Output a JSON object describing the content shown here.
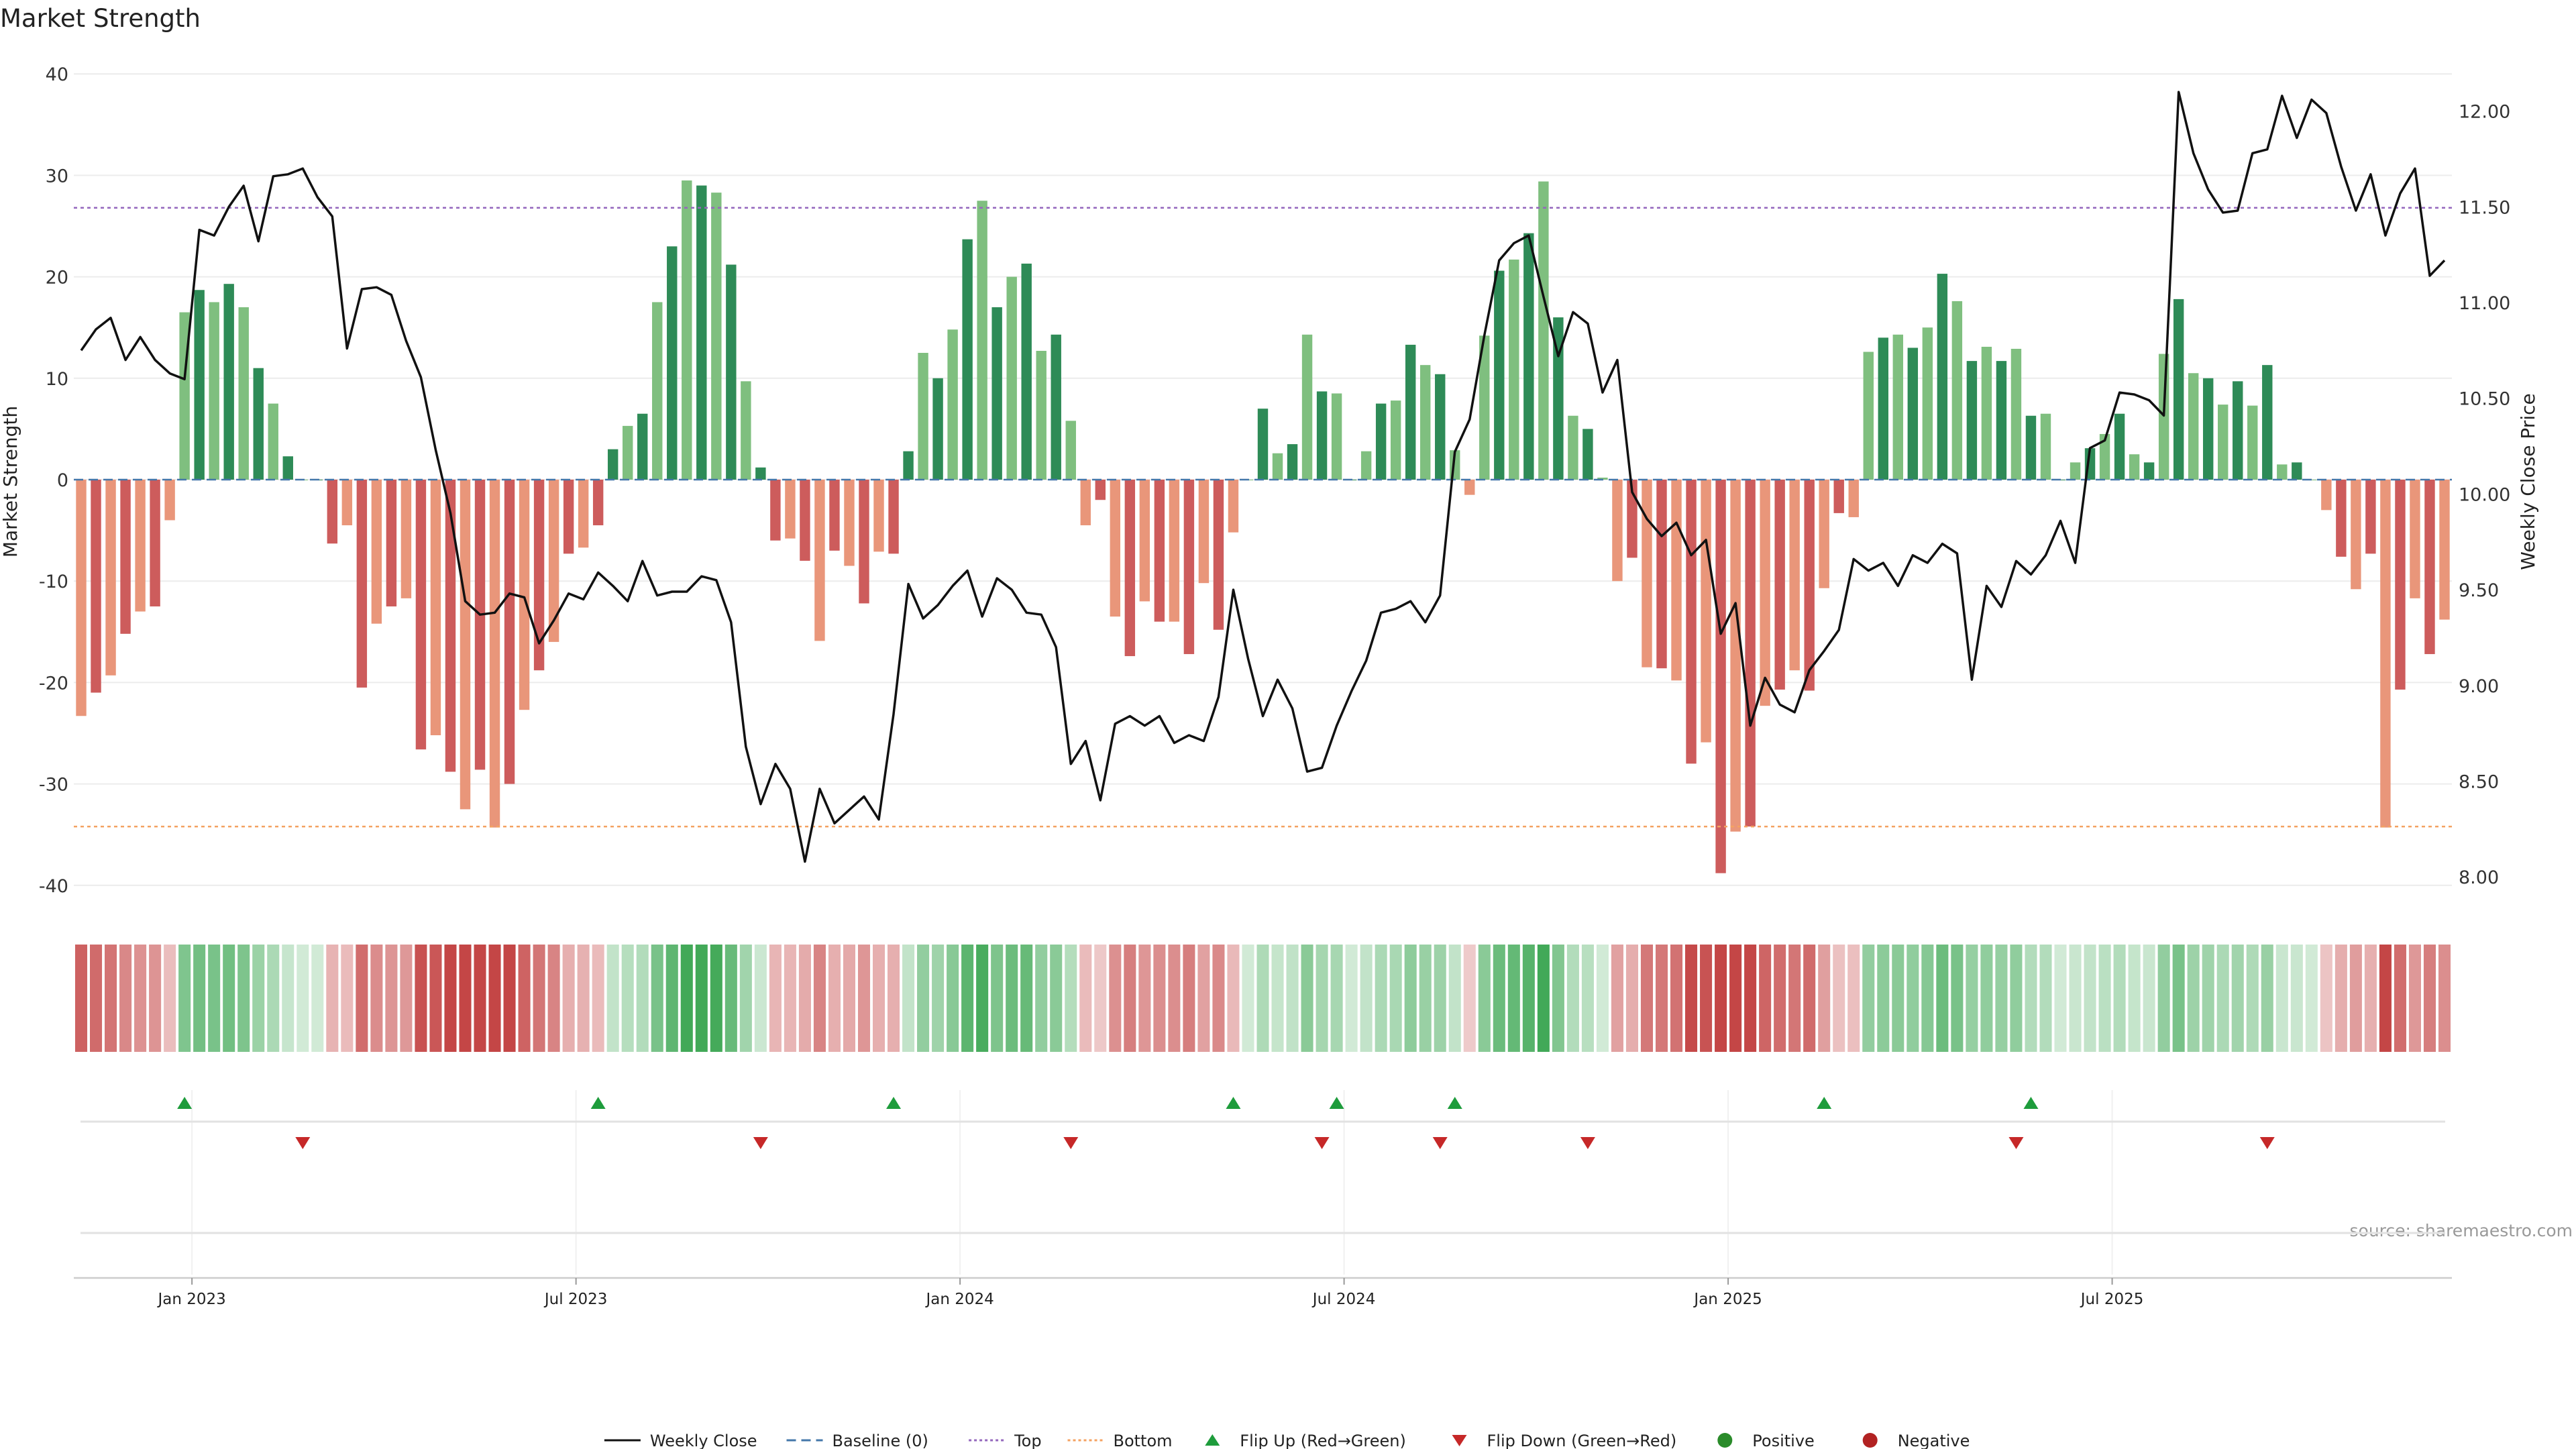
{
  "chart_data": {
    "type": "bar",
    "title": "Market Strength",
    "ylabel": "Market Strength",
    "y2label": "Weekly Close Price",
    "ylim": [
      -42,
      42
    ],
    "y2lim": [
      7.85,
      12.3
    ],
    "y_ticks": [
      -40,
      -30,
      -20,
      -10,
      0,
      10,
      20,
      30,
      40
    ],
    "y2_ticks": [
      8.0,
      8.5,
      9.0,
      9.5,
      10.0,
      10.5,
      11.0,
      11.5,
      12.0
    ],
    "y2_tick_labels": [
      "8.00",
      "8.50",
      "9.00",
      "9.50",
      "10.00",
      "10.50",
      "11.00",
      "11.50",
      "12.00"
    ],
    "x_tick_labels": [
      "Jan 2023",
      "Jul 2023",
      "Jan 2024",
      "Jul 2024",
      "Jan 2025",
      "Jul 2025"
    ],
    "x_tick_weeks": [
      7.5,
      33.5,
      59.5,
      85.5,
      111.5,
      137.5
    ],
    "top_line": 26.8,
    "bottom_line": -34.2,
    "strength": [
      -23.3,
      -21,
      -19.3,
      -15.2,
      -13,
      -12.5,
      -4,
      16.5,
      18.7,
      17.5,
      19.3,
      17,
      11,
      7.5,
      2.3,
      0,
      0,
      -6.3,
      -4.5,
      -20.5,
      -14.2,
      -12.5,
      -11.7,
      -26.6,
      -25.2,
      -28.8,
      -32.5,
      -28.6,
      -34.3,
      -30,
      -22.7,
      -18.8,
      -16,
      -7.3,
      -6.7,
      -4.5,
      3,
      5.3,
      6.5,
      17.5,
      23,
      29.5,
      29,
      28.3,
      21.2,
      9.7,
      1.2,
      -6,
      -5.8,
      -8,
      -15.9,
      -7,
      -8.5,
      -12.2,
      -7.1,
      -7.3,
      2.8,
      12.5,
      10,
      14.8,
      23.7,
      27.5,
      17,
      20,
      21.3,
      12.7,
      14.3,
      5.8,
      -4.5,
      -2,
      -13.5,
      -17.4,
      -12,
      -14,
      -14,
      -17.2,
      -10.2,
      -14.8,
      -5.2,
      0,
      7,
      2.6,
      3.5,
      14.3,
      8.7,
      8.5,
      0,
      2.8,
      7.5,
      7.8,
      13.3,
      11.3,
      10.4,
      2.9,
      -1.5,
      14.2,
      20.6,
      21.7,
      24.3,
      29.4,
      16,
      6.3,
      5,
      0.2,
      -10,
      -7.7,
      -18.5,
      -18.6,
      -19.8,
      -28,
      -25.9,
      -38.8,
      -34.7,
      -34.2,
      -22.3,
      -20.7,
      -18.8,
      -20.8,
      -10.7,
      -3.3,
      -3.7,
      12.6,
      14,
      14.3,
      13,
      15,
      20.3,
      17.6,
      11.7,
      13.1,
      11.7,
      12.9,
      6.3,
      6.5,
      0,
      1.7,
      3.1,
      4.5,
      6.5,
      2.5,
      1.7,
      12.4,
      17.8,
      10.5,
      10,
      7.4,
      9.7,
      7.3,
      11.3,
      1.5,
      1.7,
      0,
      -3,
      -7.6,
      -10.8,
      -7.3,
      -34.3,
      -20.7,
      -11.7,
      -17.2,
      -13.8
    ],
    "weekly_close": [
      10.75,
      10.86,
      10.92,
      10.7,
      10.82,
      10.7,
      10.63,
      10.6,
      11.38,
      11.35,
      11.5,
      11.61,
      11.32,
      11.66,
      11.67,
      11.7,
      11.55,
      11.45,
      10.76,
      11.07,
      11.08,
      11.04,
      10.8,
      10.61,
      10.23,
      9.9,
      9.44,
      9.37,
      9.38,
      9.48,
      9.46,
      9.22,
      9.34,
      9.48,
      9.45,
      9.59,
      9.52,
      9.44,
      9.65,
      9.47,
      9.49,
      9.49,
      9.57,
      9.55,
      9.33,
      8.68,
      8.38,
      8.59,
      8.46,
      8.08,
      8.46,
      8.28,
      8.35,
      8.42,
      8.3,
      8.85,
      9.53,
      9.35,
      9.42,
      9.52,
      9.6,
      9.36,
      9.56,
      9.5,
      9.38,
      9.37,
      9.2,
      8.59,
      8.71,
      8.4,
      8.8,
      8.84,
      8.79,
      8.84,
      8.7,
      8.74,
      8.71,
      8.94,
      9.5,
      9.14,
      8.84,
      9.03,
      8.88,
      8.55,
      8.57,
      8.79,
      8.97,
      9.13,
      9.38,
      9.4,
      9.44,
      9.33,
      9.47,
      10.22,
      10.39,
      10.83,
      11.22,
      11.31,
      11.35,
      11.03,
      10.72,
      10.95,
      10.89,
      10.53,
      10.7,
      10.01,
      9.87,
      9.78,
      9.85,
      9.68,
      9.76,
      9.27,
      9.43,
      8.79,
      9.04,
      8.9,
      8.86,
      9.08,
      9.18,
      9.29,
      9.66,
      9.6,
      9.64,
      9.52,
      9.68,
      9.64,
      9.74,
      9.69,
      9.03,
      9.52,
      9.41,
      9.65,
      9.58,
      9.68,
      9.86,
      9.64,
      10.24,
      10.28,
      10.53,
      10.52,
      10.49,
      10.41,
      12.1,
      11.78,
      11.59,
      11.47,
      11.48,
      11.78,
      11.8,
      12.08,
      11.86,
      12.06,
      11.99,
      11.71,
      11.48,
      11.67,
      11.35,
      11.57,
      11.7,
      11.14,
      11.22
    ],
    "flip_up_weeks": [
      7,
      35,
      55,
      78,
      85,
      93,
      118,
      132
    ],
    "flip_down_weeks": [
      15,
      46,
      67,
      84,
      92,
      102,
      131,
      148
    ],
    "colors": {
      "strong_green": "#2e8b57",
      "light_green": "#7fbf7f",
      "strong_red": "#cd5c5c",
      "light_red": "#e9967a",
      "close_line": "#111111",
      "top_line": "#9467bd",
      "bottom_line": "#f4a261",
      "flip_up": "#1e9c3c",
      "flip_down": "#c62828",
      "positive": "#2a8b2a",
      "negative": "#b22222"
    },
    "legend": [
      {
        "label": "Weekly Close",
        "kind": "line",
        "color": "#111111",
        "dash": ""
      },
      {
        "label": "Baseline (0)",
        "kind": "line",
        "color": "#4477aa",
        "dash": "14,8"
      },
      {
        "label": "Top",
        "kind": "line",
        "color": "#9467bd",
        "dash": "4,4"
      },
      {
        "label": "Bottom",
        "kind": "line",
        "color": "#f4a261",
        "dash": "4,4"
      },
      {
        "label": "Flip Up (Red→Green)",
        "kind": "up",
        "color": "#1e9c3c",
        "dash": ""
      },
      {
        "label": "Flip Down (Green→Red)",
        "kind": "down",
        "color": "#c62828",
        "dash": ""
      },
      {
        "label": "Positive",
        "kind": "dot",
        "color": "#2a8b2a",
        "dash": ""
      },
      {
        "label": "Negative",
        "kind": "dot",
        "color": "#b22222",
        "dash": ""
      }
    ],
    "source": "source: sharemaestro.com"
  }
}
